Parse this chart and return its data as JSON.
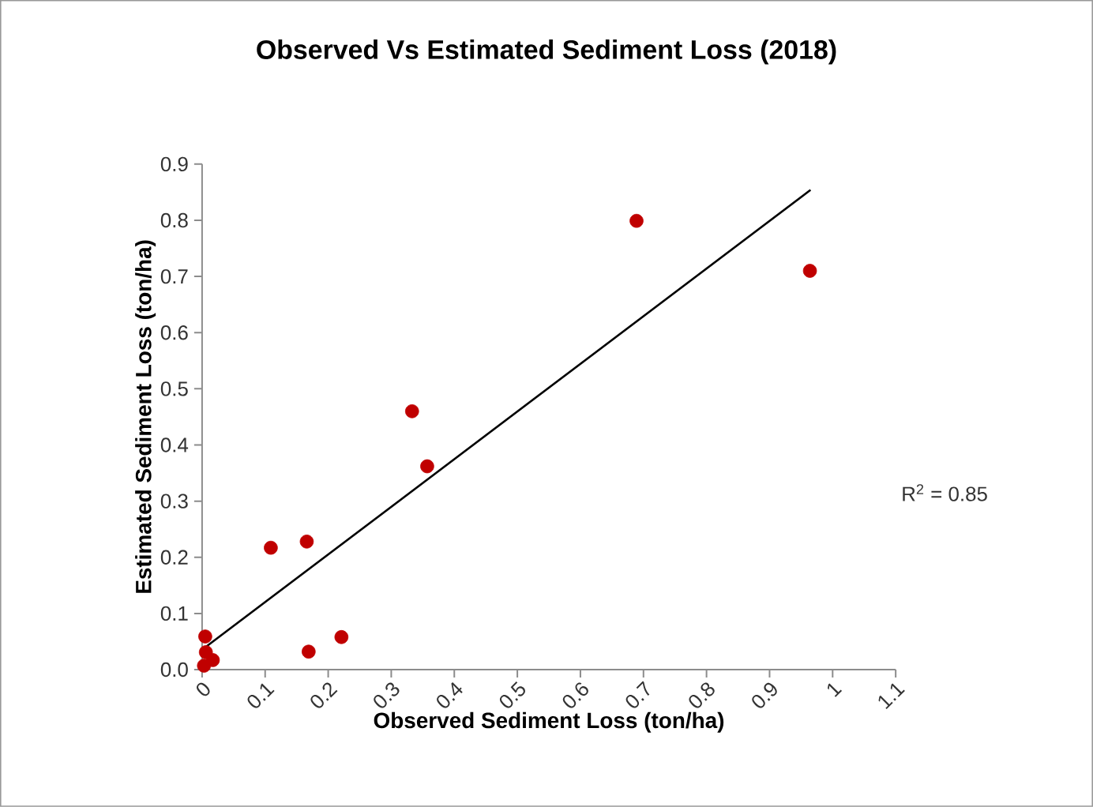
{
  "chart_data": {
    "type": "scatter",
    "title": "Observed Vs Estimated Sediment Loss (2018)",
    "xlabel": "Observed Sediment Loss (ton/ha)",
    "ylabel": "Estimated Sediment Loss (ton/ha)",
    "xlim": [
      0,
      1.1
    ],
    "ylim": [
      0,
      0.9
    ],
    "xticks": [
      0,
      0.1,
      0.2,
      0.3,
      0.4,
      0.5,
      0.6,
      0.7,
      0.8,
      0.9,
      1,
      1.1
    ],
    "yticks": [
      {
        "value": 0,
        "label": "0.0"
      },
      0.1,
      0.2,
      0.3,
      0.4,
      0.5,
      0.6,
      0.7,
      0.8,
      0.9
    ],
    "annotations": [
      "R$^{2}$ = 0.85"
    ],
    "series": [
      {
        "color": "#c00000",
        "marker": "circle",
        "x": [
          0.333,
          0.357,
          0.109,
          0.166,
          0.169,
          0.221,
          0.005,
          0.006,
          0.017,
          0.003,
          0.689,
          0.964
        ],
        "values": [
          0.46,
          0.362,
          0.217,
          0.228,
          0.032,
          0.058,
          0.059,
          0.031,
          0.017,
          0.007,
          0.799,
          0.71
        ]
      },
      {
        "type": "line",
        "color": "#000000",
        "marker": "none",
        "line_style": "solid",
        "x": [
          0.003,
          0.965
        ],
        "values": [
          0.038,
          0.854
        ]
      }
    ]
  }
}
